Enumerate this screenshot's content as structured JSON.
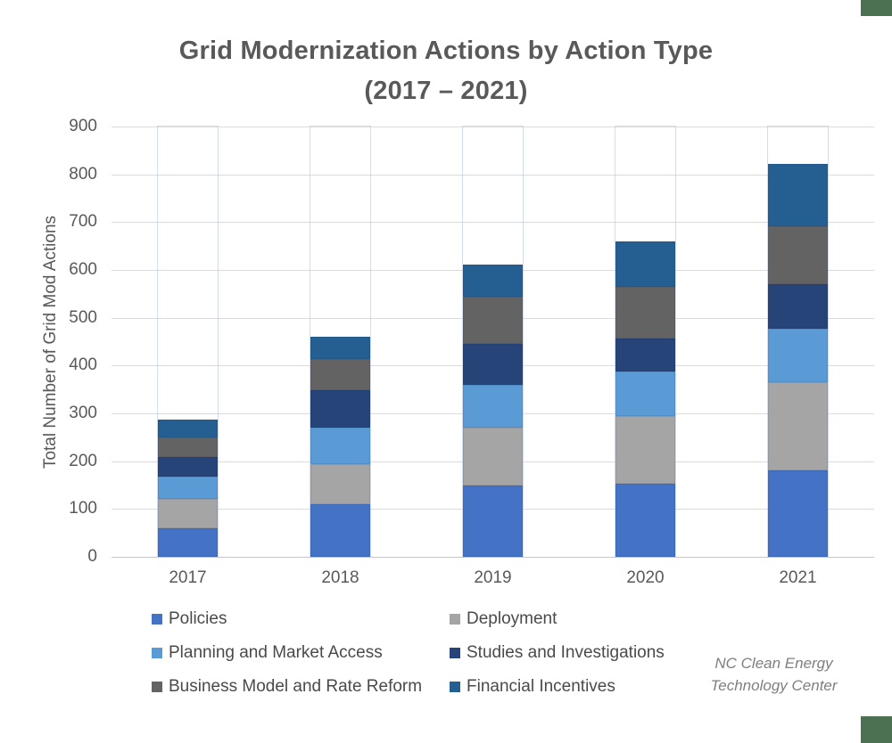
{
  "page": {
    "title_line1": "Grid Modernization Actions by Action Type",
    "title_line2": "(2017 – 2021)",
    "attribution_line1": "NC Clean Energy",
    "attribution_line2": "Technology Center"
  },
  "colors": {
    "corner_accent": "#4B7152",
    "title_text": "#595959",
    "axis_text": "#595959",
    "legend_text": "#4a4a4a",
    "gridline": "#dbdbdb",
    "axis_line": "#c7c7c7",
    "attribution_text": "#7f7f7f"
  },
  "chart_data": {
    "type": "bar",
    "stacked": true,
    "title": "Grid Modernization Actions by Action Type (2017 – 2021)",
    "categories": [
      "2017",
      "2018",
      "2019",
      "2020",
      "2021"
    ],
    "series": [
      {
        "name": "Policies",
        "color": "#4472C4",
        "values": [
          60,
          110,
          150,
          153,
          180
        ]
      },
      {
        "name": "Deployment",
        "color": "#A5A5A5",
        "values": [
          62,
          84,
          120,
          141,
          186
        ]
      },
      {
        "name": "Planning and Market Access",
        "color": "#5B9BD5",
        "values": [
          45,
          77,
          90,
          94,
          111
        ]
      },
      {
        "name": "Studies and Investigations",
        "color": "#264478",
        "values": [
          42,
          78,
          85,
          69,
          93
        ]
      },
      {
        "name": "Business Model and Rate Reform",
        "color": "#636363",
        "values": [
          40,
          65,
          100,
          107,
          121
        ]
      },
      {
        "name": "Financial Incentives",
        "color": "#255E91",
        "values": [
          39,
          46,
          67,
          95,
          131
        ]
      }
    ],
    "totals": [
      288,
      460,
      612,
      659,
      822
    ],
    "xlabel": "",
    "ylabel": "Total Number of Grid Mod Actions",
    "ylim": [
      0,
      900
    ],
    "ytick_step": 100,
    "grid": true,
    "legend_position": "bottom",
    "legend_columns": 2
  }
}
